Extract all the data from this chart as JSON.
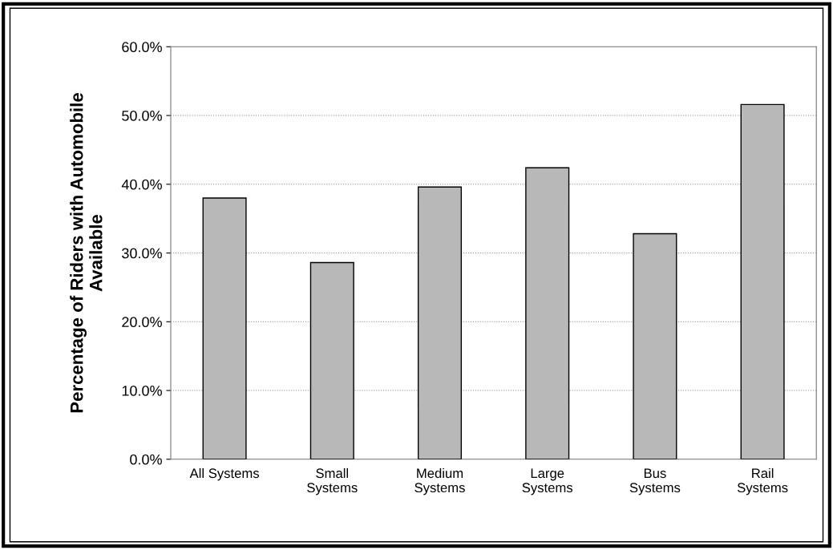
{
  "chart_data": {
    "type": "bar",
    "ylabel": "Percentage of Riders with Automobile\nAvailable",
    "categories": [
      "All Systems",
      "Small\nSystems",
      "Medium\nSystems",
      "Large\nSystems",
      "Bus\nSystems",
      "Rail\nSystems"
    ],
    "values": [
      0.38,
      0.286,
      0.396,
      0.424,
      0.328,
      0.516
    ],
    "color": "#b8b8b8",
    "ylim": [
      0,
      0.6
    ],
    "yticks": [
      {
        "value": 0,
        "label": "0.0%"
      },
      {
        "value": 0.1,
        "label": "10.0%"
      },
      {
        "value": 0.2,
        "label": "20.0%"
      },
      {
        "value": 0.3,
        "label": "30.0%"
      },
      {
        "value": 0.4,
        "label": "40.0%"
      },
      {
        "value": 0.5,
        "label": "50.0%"
      },
      {
        "value": 0.6,
        "label": "60.0%"
      }
    ],
    "grid": "y",
    "legend": false
  }
}
